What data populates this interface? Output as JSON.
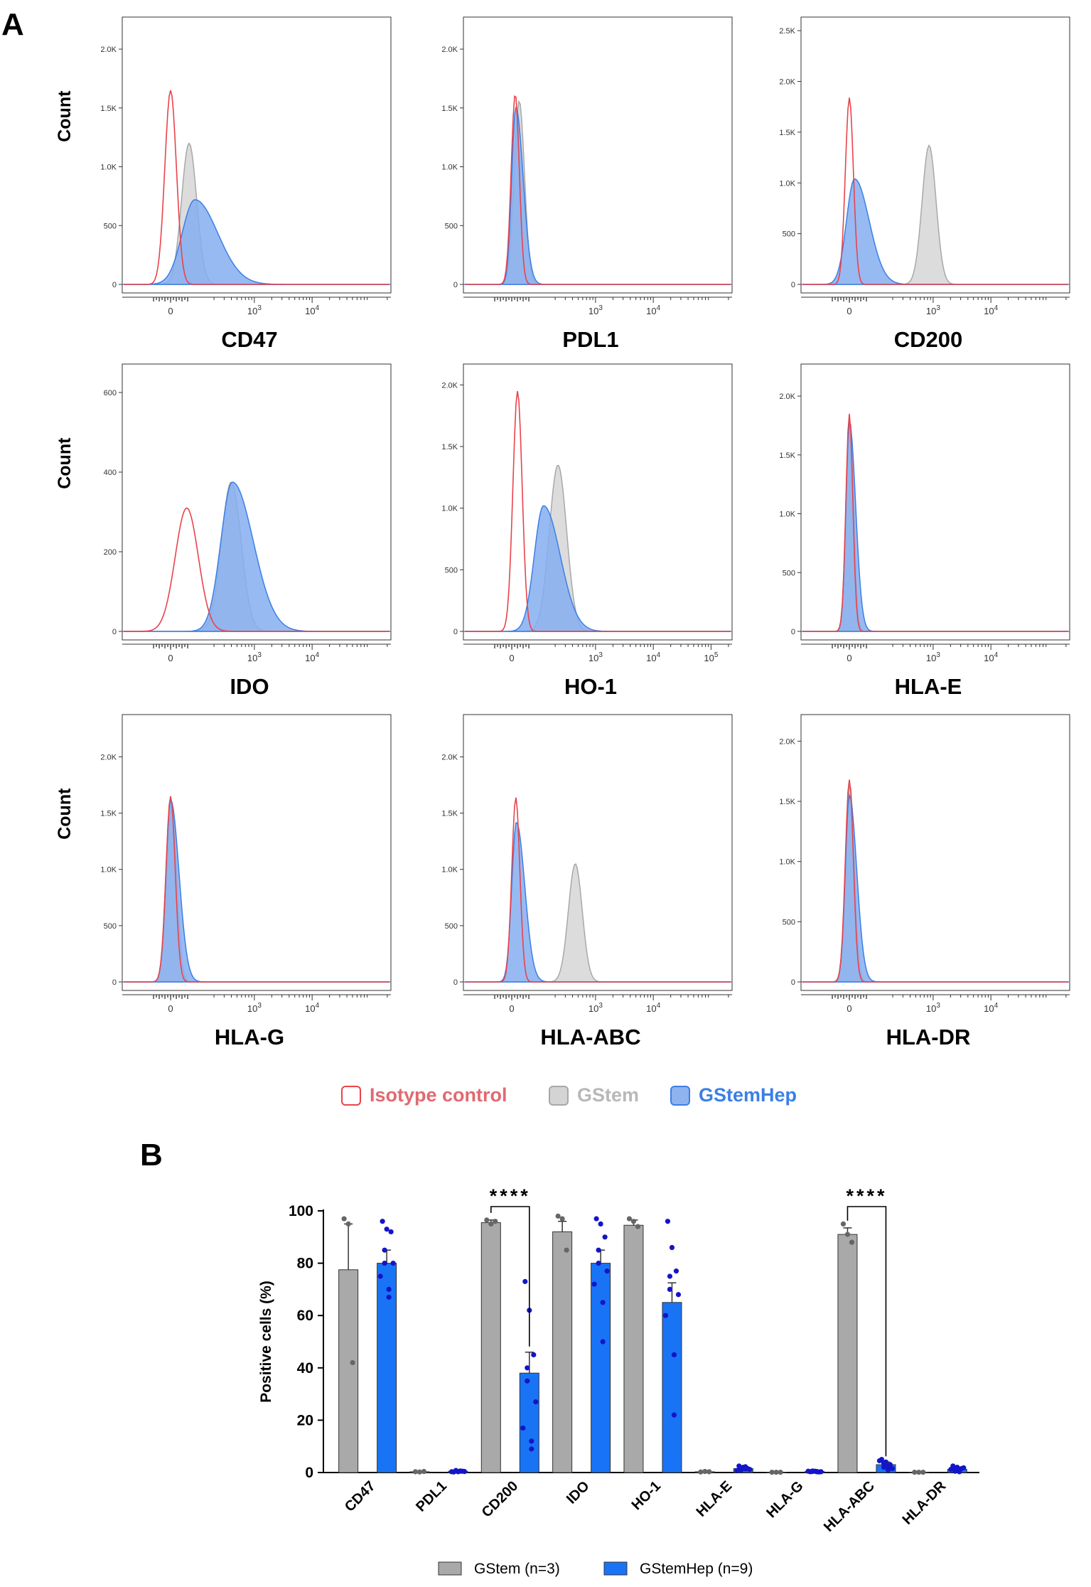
{
  "panel_a_label": "A",
  "panel_b_label": "B",
  "count_label": "Count",
  "legend_a": [
    {
      "label": "Isotype control",
      "color": "#e8434b",
      "fill": "none",
      "text_color": "#e06a70"
    },
    {
      "label": "GStem",
      "color": "#a8a8a8",
      "fill": "#d4d4d4",
      "text_color": "#b8b8b8"
    },
    {
      "label": "GStemHep",
      "color": "#3b7fe6",
      "fill": "#8fb3ee",
      "text_color": "#3b7fe6"
    }
  ],
  "chart_data": [
    {
      "type": "histogram_grid",
      "ylabel": "Count",
      "panels": [
        {
          "marker": "CD47",
          "yticks": [
            "0",
            "500",
            "1.0K",
            "1.5K",
            "2.0K"
          ],
          "ymax": 2200,
          "xticks": [
            "0",
            "10^3",
            "10^4"
          ],
          "series": {
            "isotype": {
              "peak": 0.0,
              "height": 1650,
              "width": 0.1
            },
            "gstem": {
              "peak": 0.32,
              "height": 1200,
              "width": 0.13
            },
            "gstemhep": {
              "peak": 0.42,
              "height": 720,
              "width": 0.22
            }
          }
        },
        {
          "marker": "PDL1",
          "yticks": [
            "0",
            "500",
            "1.0K",
            "1.5K",
            "2.0K"
          ],
          "ymax": 2200,
          "xticks": [
            "10^3",
            "10^4"
          ],
          "series": {
            "isotype": {
              "peak": 0.06,
              "height": 1620,
              "width": 0.07
            },
            "gstem": {
              "peak": 0.13,
              "height": 1560,
              "width": 0.09
            },
            "gstemhep": {
              "peak": 0.07,
              "height": 1510,
              "width": 0.07
            }
          }
        },
        {
          "marker": "CD200",
          "yticks": [
            "0",
            "500",
            "1.0K",
            "1.5K",
            "2.0K",
            "2.5K"
          ],
          "ymax": 2550,
          "xticks": [
            "0",
            "10^3",
            "10^4"
          ],
          "series": {
            "isotype": {
              "peak": 0.0,
              "height": 1840,
              "width": 0.07
            },
            "gstem": {
              "peak": 1.38,
              "height": 1370,
              "width": 0.12
            },
            "gstemhep": {
              "peak": 0.09,
              "height": 1040,
              "width": 0.14
            }
          }
        },
        {
          "marker": "IDO",
          "yticks": [
            "0",
            "200",
            "400",
            "600"
          ],
          "ymax": 650,
          "xticks": [
            "0",
            "10^3",
            "10^4"
          ],
          "series": {
            "isotype": {
              "peak": 0.28,
              "height": 310,
              "width": 0.2
            },
            "gstem": {
              "peak": 1.05,
              "height": 375,
              "width": 0.17
            },
            "gstemhep": {
              "peak": 1.07,
              "height": 375,
              "width": 0.2
            }
          }
        },
        {
          "marker": "HO-1",
          "yticks": [
            "0",
            "500",
            "1.0K",
            "1.5K",
            "2.0K"
          ],
          "ymax": 2100,
          "xticks": [
            "0",
            "10^3",
            "10^4",
            "10^5"
          ],
          "series": {
            "isotype": {
              "peak": 0.1,
              "height": 1950,
              "width": 0.08
            },
            "gstem": {
              "peak": 0.8,
              "height": 1350,
              "width": 0.15
            },
            "gstemhep": {
              "peak": 0.55,
              "height": 1020,
              "width": 0.16
            }
          }
        },
        {
          "marker": "HLA-E",
          "yticks": [
            "0",
            "500",
            "1.0K",
            "1.5K",
            "2.0K"
          ],
          "ymax": 2200,
          "xticks": [
            "0",
            "10^3",
            "10^4"
          ],
          "series": {
            "isotype": {
              "peak": 0.0,
              "height": 1850,
              "width": 0.06
            },
            "gstem": {
              "peak": 0.01,
              "height": 1800,
              "width": 0.065
            },
            "gstemhep": {
              "peak": 0.0,
              "height": 1780,
              "width": 0.06
            }
          }
        },
        {
          "marker": "HLA-G",
          "yticks": [
            "0",
            "500",
            "1.0K",
            "1.5K",
            "2.0K"
          ],
          "ymax": 2300,
          "xticks": [
            "0",
            "10^3",
            "10^4"
          ],
          "series": {
            "isotype": {
              "peak": 0.0,
              "height": 1650,
              "width": 0.08
            },
            "gstem": {
              "peak": 0.02,
              "height": 1600,
              "width": 0.085
            },
            "gstemhep": {
              "peak": 0.0,
              "height": 1620,
              "width": 0.08
            }
          }
        },
        {
          "marker": "HLA-ABC",
          "yticks": [
            "0",
            "500",
            "1.0K",
            "1.5K",
            "2.0K"
          ],
          "ymax": 2300,
          "xticks": [
            "0",
            "10^3",
            "10^4"
          ],
          "series": {
            "isotype": {
              "peak": 0.07,
              "height": 1640,
              "width": 0.07
            },
            "gstem": {
              "peak": 1.1,
              "height": 1050,
              "width": 0.12
            },
            "gstemhep": {
              "peak": 0.08,
              "height": 1420,
              "width": 0.08
            }
          }
        },
        {
          "marker": "HLA-DR",
          "yticks": [
            "0",
            "500",
            "1.0K",
            "1.5K",
            "2.0K"
          ],
          "ymax": 2150,
          "xticks": [
            "0",
            "10^3",
            "10^4"
          ],
          "series": {
            "isotype": {
              "peak": 0.0,
              "height": 1680,
              "width": 0.07
            },
            "gstem": {
              "peak": 0.01,
              "height": 1640,
              "width": 0.075
            },
            "gstemhep": {
              "peak": 0.0,
              "height": 1550,
              "width": 0.07
            }
          }
        }
      ]
    },
    {
      "type": "bar",
      "ylabel": "Positive cells (%)",
      "ylim": [
        0,
        100
      ],
      "yticks": [
        0,
        20,
        40,
        60,
        80,
        100
      ],
      "categories": [
        "CD47",
        "PDL1",
        "CD200",
        "IDO",
        "HO-1",
        "HLA-E",
        "HLA-G",
        "HLA-ABC",
        "HLA-DR"
      ],
      "series": [
        {
          "name": "GStem (n=3)",
          "color": "#a9a9a9",
          "point_color": "#666666",
          "values": [
            77.5,
            0.3,
            95.5,
            92,
            94.5,
            0.3,
            0.1,
            91,
            0.1
          ],
          "errors": [
            17.5,
            0.1,
            1.0,
            4,
            2,
            0.1,
            0.05,
            2.5,
            0.05
          ],
          "points": [
            [
              97,
              95,
              42
            ],
            [
              0.3,
              0.2,
              0.4
            ],
            [
              96.5,
              95,
              96
            ],
            [
              98,
              97,
              85
            ],
            [
              97,
              96,
              94
            ],
            [
              0.2,
              0.4,
              0.3
            ],
            [
              0.1,
              0.1,
              0.1
            ],
            [
              95,
              91,
              88
            ],
            [
              0.1,
              0.1,
              0.1
            ]
          ]
        },
        {
          "name": "GStemHep (n=9)",
          "color": "#1874f5",
          "point_color": "#1414c8",
          "values": [
            80,
            0.5,
            38,
            80,
            65,
            1.5,
            0.4,
            3,
            1.2
          ],
          "errors": [
            5,
            0.2,
            8,
            5,
            7.5,
            0.4,
            0.15,
            1,
            0.4
          ],
          "points": [
            [
              96,
              93,
              92,
              85,
              80,
              80,
              75,
              70,
              67
            ],
            [
              0.2,
              0.3,
              0.5,
              0.6,
              0.8,
              0.4,
              0.3,
              0.5,
              0.6
            ],
            [
              73,
              62,
              45,
              40,
              35,
              27,
              17,
              12,
              9
            ],
            [
              97,
              95,
              90,
              85,
              80,
              77,
              72,
              65,
              50
            ],
            [
              96,
              86,
              77,
              75,
              70,
              68,
              60,
              45,
              22
            ],
            [
              2.5,
              2,
              1.5,
              1,
              1.8,
              1.2,
              0.8,
              2.2,
              1.4
            ],
            [
              0.3,
              0.5,
              0.2,
              0.6,
              0.4,
              0.3,
              0.5,
              0.4,
              0.3
            ],
            [
              5,
              4,
              3,
              2,
              3.5,
              1.5,
              4.5,
              2.5,
              1
            ],
            [
              2.5,
              2,
              1.5,
              1,
              0.5,
              1.8,
              1.2,
              0.8,
              0.3
            ]
          ]
        }
      ],
      "significance": [
        {
          "category": "CD200",
          "label": "****"
        },
        {
          "category": "HLA-ABC",
          "label": "****"
        }
      ]
    }
  ]
}
